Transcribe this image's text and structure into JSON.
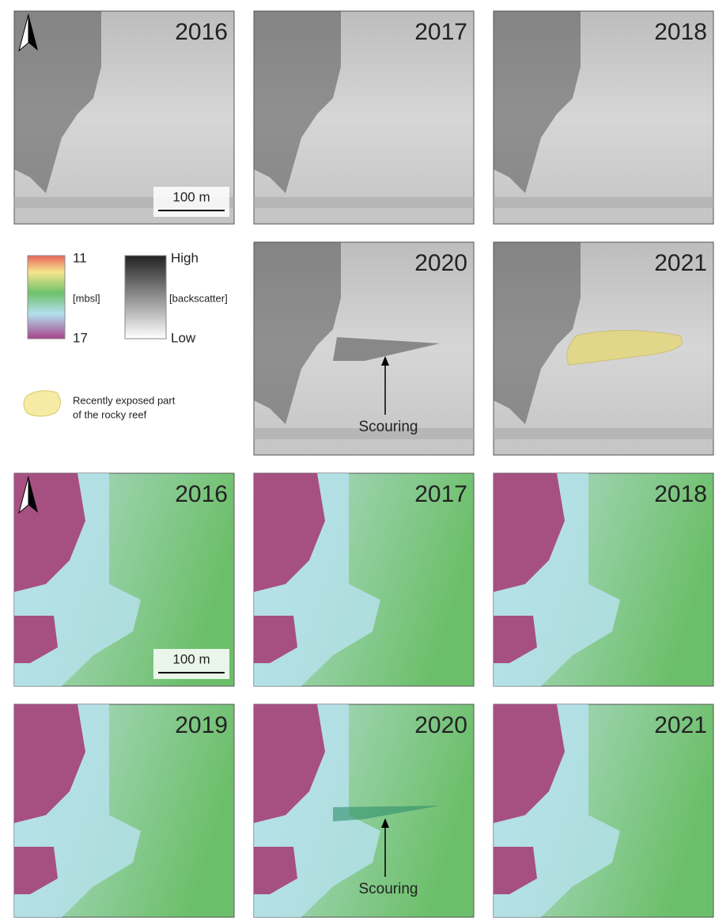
{
  "backscatter_panels": [
    {
      "year": "2016"
    },
    {
      "year": "2017"
    },
    {
      "year": "2018"
    },
    {
      "year": "2020"
    },
    {
      "year": "2021"
    }
  ],
  "bathymetry_panels": [
    {
      "year": "2016"
    },
    {
      "year": "2017"
    },
    {
      "year": "2018"
    },
    {
      "year": "2019"
    },
    {
      "year": "2020"
    },
    {
      "year": "2021"
    }
  ],
  "legend": {
    "depth_top": "11",
    "depth_unit": "[mbsl]",
    "depth_bottom": "17",
    "backscatter_top": "High",
    "backscatter_unit": "[backscatter]",
    "backscatter_bottom": "Low",
    "reef_line1": "Recently exposed part",
    "reef_line2": "of the rocky reef"
  },
  "scale_bar": "100 m",
  "annotation": "Scouring"
}
